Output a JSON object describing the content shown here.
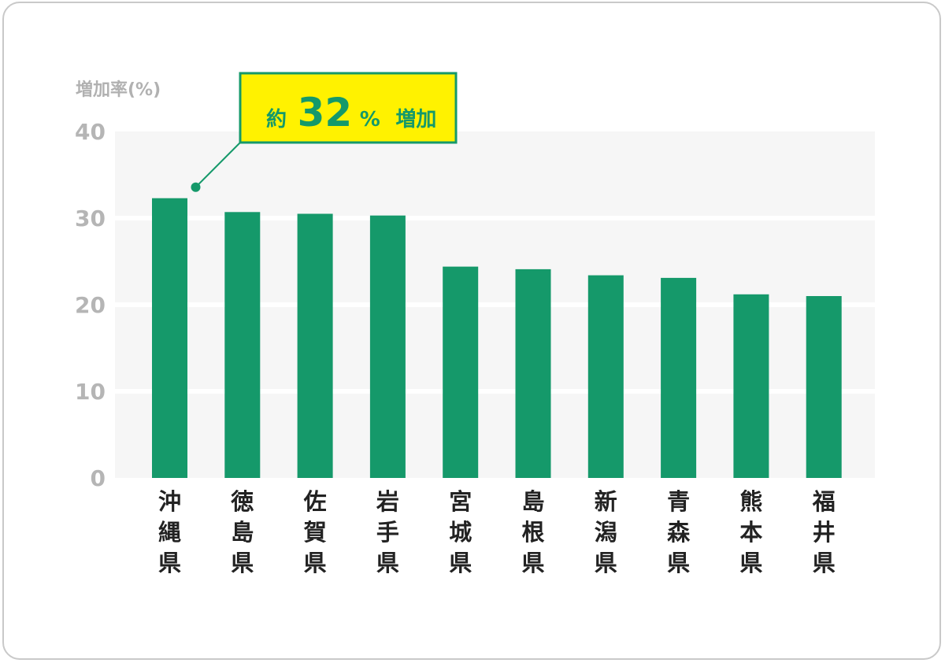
{
  "chart_data": {
    "type": "bar",
    "ylabel": "増加率(%)",
    "ylim": [
      0,
      40
    ],
    "yticks": [
      0,
      10,
      20,
      30,
      40
    ],
    "grid": true,
    "categories": [
      "沖縄県",
      "徳島県",
      "佐賀県",
      "岩手県",
      "宮城県",
      "島根県",
      "新潟県",
      "青森県",
      "熊本県",
      "福井県"
    ],
    "values": [
      32.3,
      30.7,
      30.5,
      30.3,
      24.4,
      24.1,
      23.4,
      23.1,
      21.2,
      21.0
    ],
    "colors": {
      "bar": "#15996a",
      "plot_bg": "#f6f6f6",
      "grid": "#ffffff"
    },
    "annotation": {
      "prefix": "約",
      "value": "32",
      "suffix": "%",
      "text": "増加",
      "target_category": "沖縄県",
      "colors": {
        "fill": "#fff200",
        "border": "#15996a",
        "text": "#14996a"
      }
    }
  }
}
